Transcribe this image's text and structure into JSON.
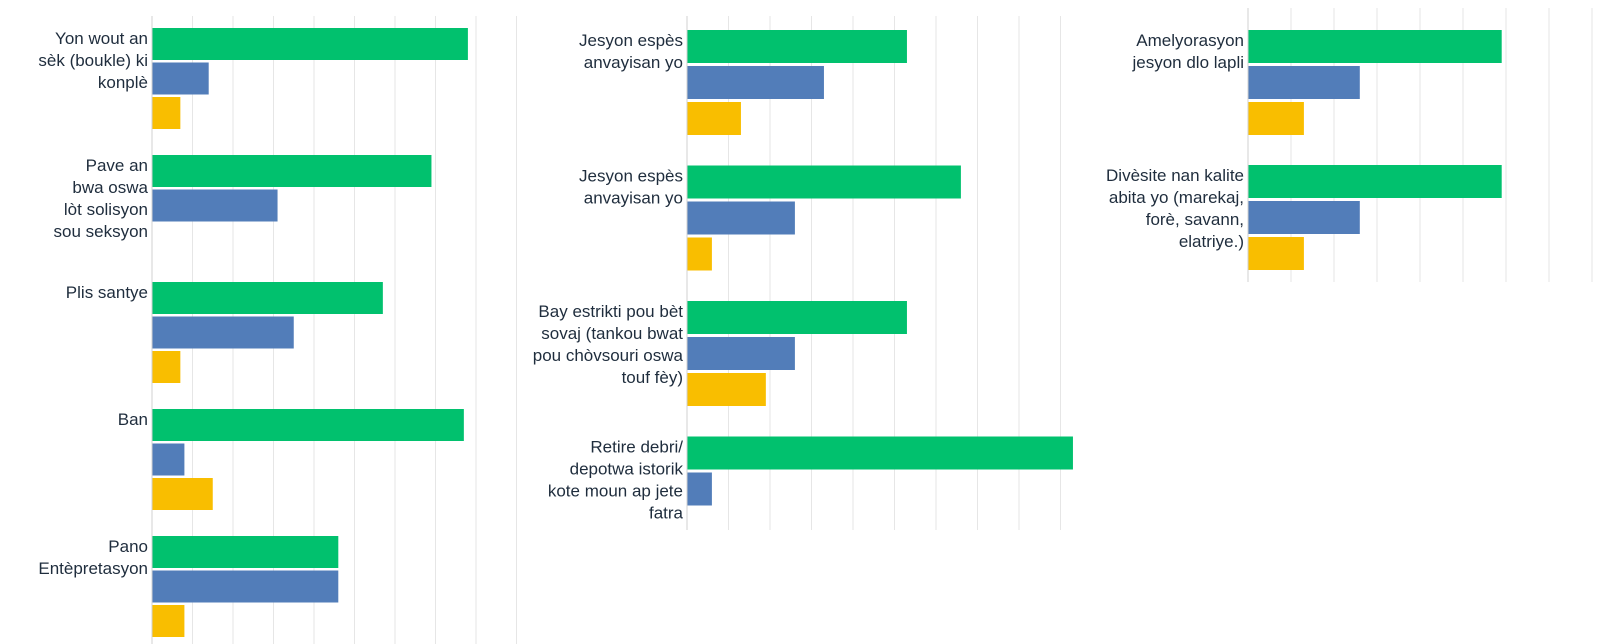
{
  "colors": {
    "series_green": "#01C16E",
    "series_blue": "#527DB9",
    "series_yellow": "#F9BE00",
    "grid": "#E6E6E6",
    "text": "#1F2D3D"
  },
  "chart_data": [
    {
      "type": "bar",
      "orientation": "horizontal",
      "grid": true,
      "xlim": [
        0,
        9
      ],
      "legend": "none",
      "categories": [
        "Yon wout an sèk (boukle) ki konplè",
        "Pave an bwa oswa lòt solisyon sou seksyon",
        "Plis santye",
        "Ban",
        "Pano Entèpretasyon"
      ],
      "series": [
        {
          "color": "green",
          "values": [
            7.8,
            6.9,
            5.7,
            7.7,
            4.6
          ]
        },
        {
          "color": "blue",
          "values": [
            1.4,
            3.1,
            3.5,
            0.8,
            4.6
          ]
        },
        {
          "color": "yellow",
          "values": [
            0.7,
            0,
            0.7,
            1.5,
            0.8
          ]
        }
      ]
    },
    {
      "type": "bar",
      "orientation": "horizontal",
      "grid": true,
      "xlim": [
        0,
        9
      ],
      "legend": "none",
      "categories": [
        "Jesyon espès anvayisan yo",
        "Jesyon espès anvayisan yo",
        "Bay estrikti pou bèt sovaj (tankou bwat pou chòvsouri oswa touf fèy)",
        "Retire debri/ depotwa istorik kote moun ap jete fatra"
      ],
      "series": [
        {
          "color": "green",
          "values": [
            5.3,
            6.6,
            5.3,
            9.3
          ]
        },
        {
          "color": "blue",
          "values": [
            3.3,
            2.6,
            2.6,
            0.6
          ]
        },
        {
          "color": "yellow",
          "values": [
            1.3,
            0.6,
            1.9,
            0
          ]
        }
      ]
    },
    {
      "type": "bar",
      "orientation": "horizontal",
      "grid": true,
      "xlim": [
        0,
        8
      ],
      "legend": "none",
      "categories": [
        "Amelyorasyon jesyon dlo lapli",
        "Divèsite nan kalite abita yo (marekaj, forè, savann, elatriye.)"
      ],
      "series": [
        {
          "color": "green",
          "values": [
            5.9,
            5.9
          ]
        },
        {
          "color": "blue",
          "values": [
            2.6,
            2.6
          ]
        },
        {
          "color": "yellow",
          "values": [
            1.3,
            1.3
          ]
        }
      ]
    }
  ]
}
